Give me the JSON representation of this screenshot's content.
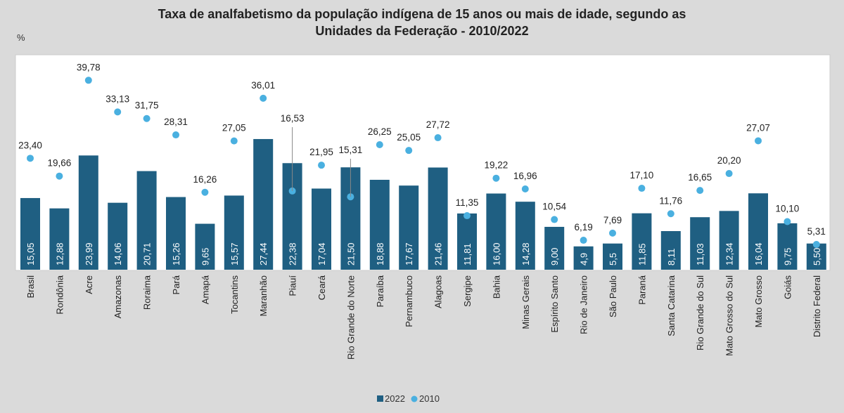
{
  "chart_data": {
    "type": "bar",
    "title": "Taxa de analfabetismo da população indígena de 15 anos ou mais de idade, segundo as Unidades da Federação - 2010/2022",
    "title_lines": [
      "Taxa de analfabetismo da população indígena de 15 anos ou mais de idade, segundo as",
      "Unidades da Federação - 2010/2022"
    ],
    "ylabel": "%",
    "ylim": [
      0,
      42
    ],
    "grid": false,
    "legend_position": "bottom",
    "categories": [
      "Brasil",
      "Rondônia",
      "Acre",
      "Amazonas",
      "Roraima",
      "Pará",
      "Amapá",
      "Tocantins",
      "Maranhão",
      "Piauí",
      "Ceará",
      "Rio Grande do Norte",
      "Paraíba",
      "Pernambuco",
      "Alagoas",
      "Sergipe",
      "Bahia",
      "Minas Gerais",
      "Espírito Santo",
      "Rio de Janeiro",
      "São Paulo",
      "Paraná",
      "Santa Catarina",
      "Rio Grande do Sul",
      "Mato Grosso do Sul",
      "Mato Grosso",
      "Goiás",
      "Distrito Federal"
    ],
    "series": [
      {
        "name": "2022",
        "type": "bar",
        "color": "#1f5f82",
        "values": [
          15.05,
          12.88,
          23.99,
          14.06,
          20.71,
          15.26,
          9.65,
          15.57,
          27.44,
          22.38,
          17.04,
          21.5,
          18.88,
          17.67,
          21.46,
          11.81,
          16.0,
          14.28,
          9.0,
          4.9,
          5.5,
          11.85,
          8.11,
          11.03,
          12.34,
          16.04,
          9.75,
          5.5
        ],
        "labels": [
          "15,05",
          "12,88",
          "23,99",
          "14,06",
          "20,71",
          "15,26",
          "9,65",
          "15,57",
          "27,44",
          "22,38",
          "17,04",
          "21,50",
          "18,88",
          "17,67",
          "21,46",
          "11,81",
          "16,00",
          "14,28",
          "9,00",
          "4,9",
          "5,5",
          "11,85",
          "8,11",
          "11,03",
          "12,34",
          "16,04",
          "9,75",
          "5,50"
        ]
      },
      {
        "name": "2010",
        "type": "scatter",
        "color": "#4ab0e0",
        "values": [
          23.4,
          19.66,
          39.78,
          33.13,
          31.75,
          28.31,
          16.26,
          27.05,
          36.01,
          16.53,
          21.95,
          15.31,
          26.25,
          25.05,
          27.72,
          11.35,
          19.22,
          16.96,
          10.54,
          6.19,
          7.69,
          17.1,
          11.76,
          16.65,
          20.2,
          27.07,
          10.1,
          5.31
        ],
        "labels": [
          "23,40",
          "19,66",
          "39,78",
          "33,13",
          "31,75",
          "28,31",
          "16,26",
          "27,05",
          "36,01",
          "16,53",
          "21,95",
          "15,31",
          "26,25",
          "25,05",
          "27,72",
          "11,35",
          "19,22",
          "16,96",
          "10,54",
          "6,19",
          "7,69",
          "17,10",
          "11,76",
          "16,65",
          "20,20",
          "27,07",
          "10,10",
          "5,31"
        ]
      }
    ]
  }
}
